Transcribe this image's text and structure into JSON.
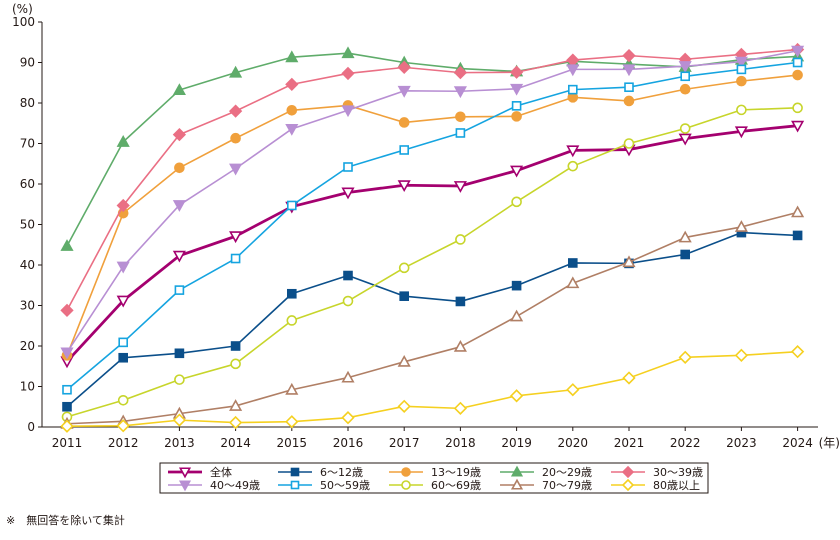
{
  "chart_data": {
    "type": "line",
    "y_unit": "(%)",
    "x_unit": "(年)",
    "ylim": [
      0,
      100
    ],
    "y_ticks": [
      0,
      10,
      20,
      30,
      40,
      50,
      60,
      70,
      80,
      90,
      100
    ],
    "grid": false,
    "legend_position": "bottom",
    "categories": [
      "2011",
      "2012",
      "2013",
      "2014",
      "2015",
      "2016",
      "2017",
      "2018",
      "2019",
      "2020",
      "2021",
      "2022",
      "2023",
      "2024"
    ],
    "series": [
      {
        "name": "全体",
        "color": "#a4006f",
        "marker": "triangle-down-open",
        "values": [
          16.2,
          31.2,
          42.3,
          47.1,
          54.4,
          57.9,
          59.7,
          59.5,
          63.3,
          68.3,
          68.5,
          71.2,
          73.0,
          74.4
        ]
      },
      {
        "name": "6～12歳",
        "color": "#0b4f8a",
        "marker": "square",
        "values": [
          5.0,
          17.1,
          18.2,
          20.0,
          32.9,
          37.4,
          32.3,
          31.0,
          34.9,
          40.5,
          40.4,
          42.6,
          48.0,
          47.3
        ]
      },
      {
        "name": "13～19歳",
        "color": "#f0a03c",
        "marker": "circle",
        "values": [
          17.7,
          52.8,
          64.0,
          71.3,
          78.2,
          79.4,
          75.2,
          76.6,
          76.7,
          81.4,
          80.5,
          83.4,
          85.4,
          86.9
        ]
      },
      {
        "name": "20～29歳",
        "color": "#5fac6a",
        "marker": "triangle-up",
        "values": [
          44.7,
          70.4,
          83.2,
          87.5,
          91.3,
          92.3,
          90.0,
          88.5,
          87.8,
          90.3,
          89.6,
          88.9,
          90.7,
          91.5
        ]
      },
      {
        "name": "30～39歳",
        "color": "#ea6f84",
        "marker": "diamond",
        "values": [
          28.8,
          54.7,
          72.2,
          78.0,
          84.6,
          87.3,
          88.8,
          87.5,
          87.6,
          90.6,
          91.7,
          90.8,
          92.0,
          93.2
        ]
      },
      {
        "name": "40～49歳",
        "color": "#b88fd3",
        "marker": "triangle-down",
        "values": [
          18.4,
          39.6,
          54.8,
          63.8,
          73.6,
          78.2,
          83.0,
          82.9,
          83.5,
          88.3,
          88.3,
          89.1,
          90.2,
          92.9
        ]
      },
      {
        "name": "50～59歳",
        "color": "#15a4e0",
        "marker": "square-open",
        "values": [
          9.2,
          20.9,
          33.8,
          41.6,
          54.7,
          64.2,
          68.4,
          72.6,
          79.3,
          83.3,
          83.9,
          86.6,
          88.3,
          90.0
        ]
      },
      {
        "name": "60～69歳",
        "color": "#c7d52b",
        "marker": "circle-open",
        "values": [
          2.5,
          6.6,
          11.7,
          15.6,
          26.3,
          31.1,
          39.3,
          46.3,
          55.6,
          64.4,
          70.0,
          73.7,
          78.3,
          78.8
        ]
      },
      {
        "name": "70～79歳",
        "color": "#b07f65",
        "marker": "triangle-up-open",
        "values": [
          0.8,
          1.4,
          3.3,
          5.2,
          9.2,
          12.2,
          16.1,
          19.8,
          27.3,
          35.5,
          40.7,
          46.8,
          49.4,
          53.0
        ]
      },
      {
        "name": "80歳以上",
        "color": "#f5d020",
        "marker": "diamond-open",
        "values": [
          0.2,
          0.3,
          1.7,
          1.1,
          1.3,
          2.3,
          5.1,
          4.6,
          7.7,
          9.2,
          12.1,
          17.2,
          17.7,
          18.6
        ]
      }
    ]
  },
  "footnote": "※　無回答を除いて集計"
}
